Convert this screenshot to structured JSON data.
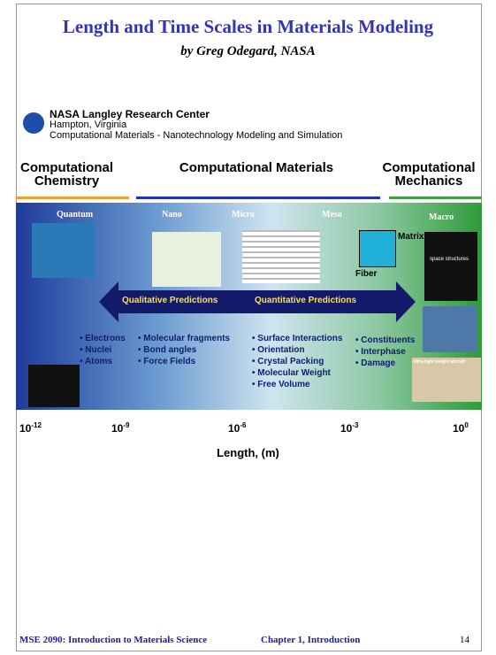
{
  "slide": {
    "title": "Length and Time Scales in Materials Modeling",
    "subtitle": "by Greg Odegard, NASA",
    "header": {
      "org": "NASA Langley Research Center",
      "location": "Hampton, Virginia",
      "program": "Computational Materials - Nanotechnology Modeling and Simulation"
    },
    "disciplines": [
      "Computational Chemistry",
      "Computational Materials",
      "Computational Mechanics"
    ],
    "scales": [
      "Quantum",
      "Nano",
      "Micro",
      "Meso",
      "Macro"
    ],
    "image_labels": {
      "matrix": "Matrix",
      "fiber": "Fiber",
      "space": "space structures",
      "aircraft": "Ultra-light weight aircraft"
    },
    "arrow": [
      "Qualitative Predictions",
      "Quantitative Predictions"
    ],
    "lists": [
      [
        "• Electrons",
        "• Nuclei",
        "• Atoms"
      ],
      [
        "• Molecular fragments",
        "• Bond angles",
        "• Force Fields"
      ],
      [
        "• Surface Interactions",
        "• Orientation",
        "• Crystal Packing",
        "• Molecular Weight",
        "• Free Volume"
      ],
      [
        "• Constituents",
        "• Interphase",
        "• Damage"
      ]
    ],
    "ticks": [
      {
        "base": "10",
        "exponent": "-12"
      },
      {
        "base": "10",
        "exponent": "-9"
      },
      {
        "base": "10",
        "exponent": "-6"
      },
      {
        "base": "10",
        "exponent": "-3"
      },
      {
        "base": "10",
        "exponent": "0"
      }
    ],
    "axis_label": "Length, (m)",
    "footer": {
      "course": "MSE 2090: Introduction to Materials Science",
      "chapter": "Chapter 1, Introduction",
      "page": "14"
    }
  }
}
